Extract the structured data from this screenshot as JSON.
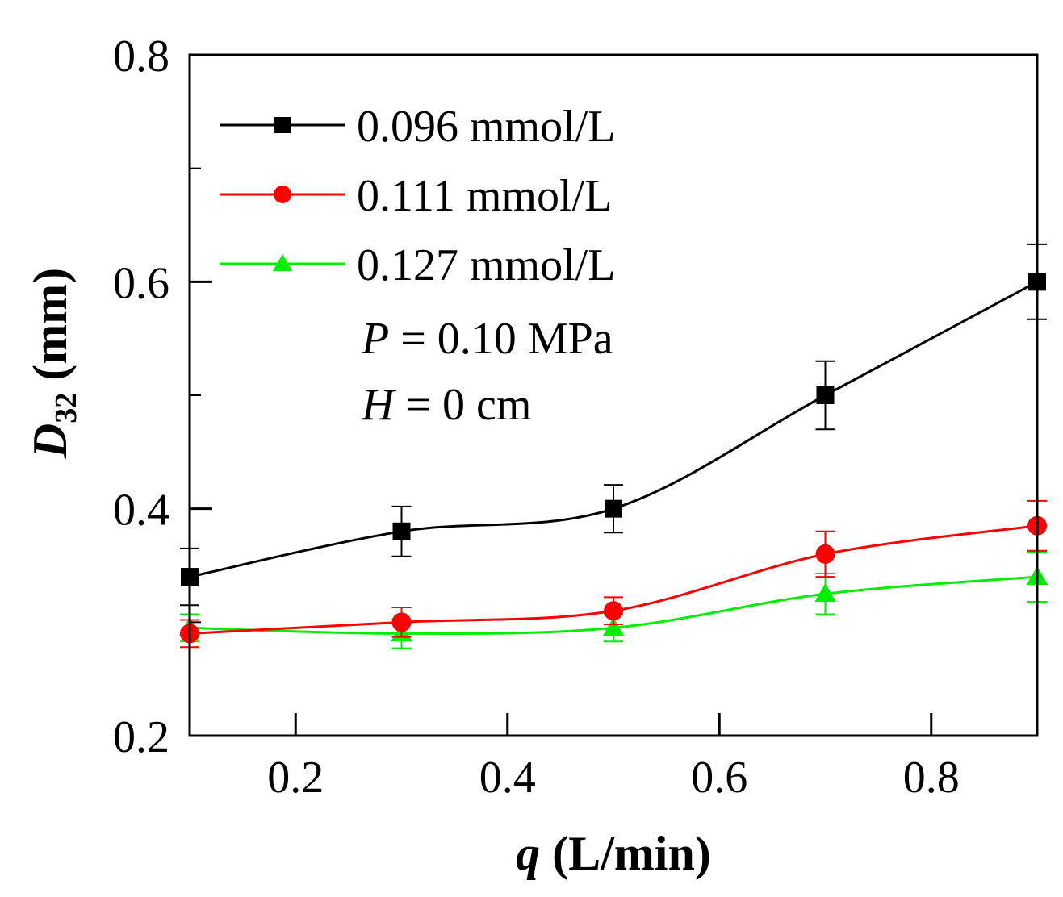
{
  "chart_data": {
    "type": "line",
    "title": "",
    "xlabel": "q (L/min)",
    "xlabel_var": "q",
    "xlabel_unit": "(L/min)",
    "ylabel": "D32 (mm)",
    "ylabel_var": "D",
    "ylabel_sub": "32",
    "ylabel_unit": "(mm)",
    "xlim": [
      0.1,
      0.9
    ],
    "ylim": [
      0.2,
      0.8
    ],
    "xticks": [
      0.2,
      0.4,
      0.6,
      0.8
    ],
    "xtick_labels": [
      "0.2",
      "0.4",
      "0.6",
      "0.8"
    ],
    "yticks": [
      0.2,
      0.4,
      0.6,
      0.8
    ],
    "ytick_labels": [
      "0.2",
      "0.4",
      "0.6",
      "0.8"
    ],
    "grid": false,
    "legend_position": "top-left",
    "annotations": [
      {
        "var": "P",
        "text": " = 0.10 MPa"
      },
      {
        "var": "H",
        "text": " = 0 cm"
      }
    ],
    "series": [
      {
        "name": "0.096 mmol/L",
        "color": "#000000",
        "marker": "square",
        "x": [
          0.1,
          0.3,
          0.5,
          0.7,
          0.9
        ],
        "values": [
          0.34,
          0.38,
          0.4,
          0.5,
          0.6
        ],
        "errors": [
          0.025,
          0.022,
          0.021,
          0.03,
          0.033
        ]
      },
      {
        "name": "0.111 mmol/L",
        "color": "#ff0000",
        "marker": "circle",
        "x": [
          0.1,
          0.3,
          0.5,
          0.7,
          0.9
        ],
        "values": [
          0.29,
          0.3,
          0.31,
          0.36,
          0.385
        ],
        "errors": [
          0.012,
          0.013,
          0.012,
          0.02,
          0.022
        ]
      },
      {
        "name": "0.127 mmol/L",
        "color": "#00ee00",
        "marker": "triangle",
        "x": [
          0.1,
          0.3,
          0.5,
          0.7,
          0.9
        ],
        "values": [
          0.295,
          0.29,
          0.295,
          0.325,
          0.34
        ],
        "errors": [
          0.012,
          0.013,
          0.012,
          0.018,
          0.022
        ]
      }
    ]
  }
}
